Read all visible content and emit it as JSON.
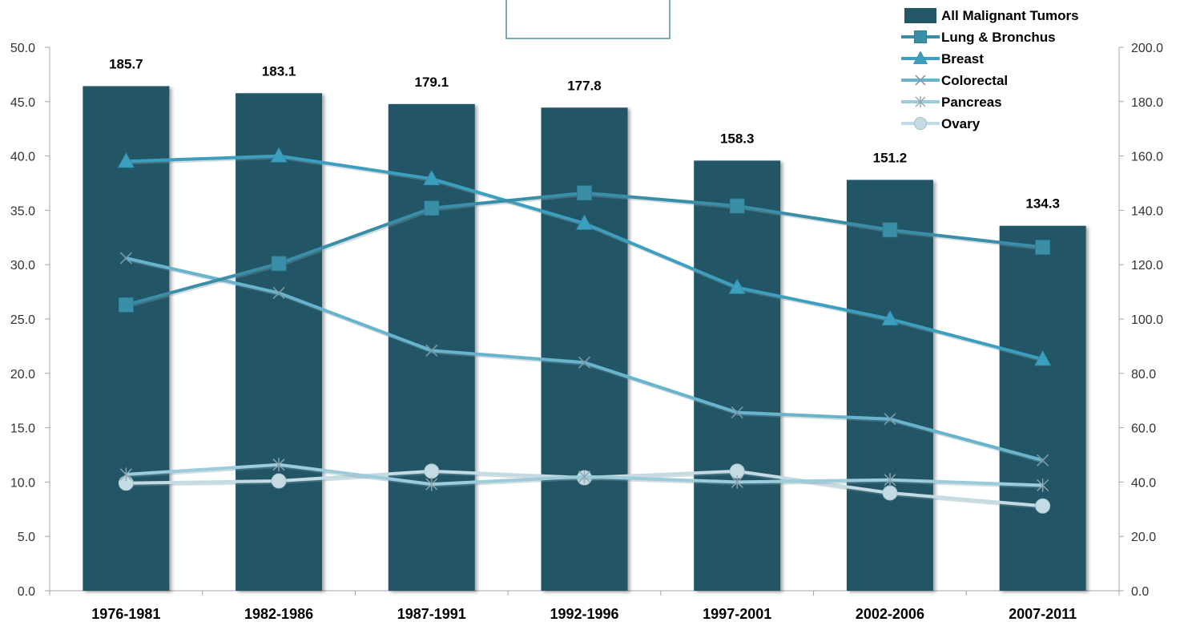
{
  "chart_data": {
    "type": "bar+line",
    "categories": [
      "1976-1981",
      "1982-1986",
      "1987-1991",
      "1992-1996",
      "1997-2001",
      "2002-2006",
      "2007-2011"
    ],
    "bar_series": {
      "name": "All Malignant Tumors",
      "axis": "right",
      "values": [
        185.7,
        183.1,
        179.1,
        177.8,
        158.3,
        151.2,
        134.3
      ],
      "labels": [
        "185.7",
        "183.1",
        "179.1",
        "177.8",
        "158.3",
        "151.2",
        "134.3"
      ],
      "color": "#235766"
    },
    "line_series": [
      {
        "name": "Lung & Bronchus",
        "axis": "left",
        "marker": "square",
        "color": "#3a8ea8",
        "values": [
          26.3,
          30.1,
          35.2,
          36.6,
          35.4,
          33.2,
          31.6
        ]
      },
      {
        "name": "Breast",
        "axis": "left",
        "marker": "triangle",
        "color": "#3d9fbf",
        "values": [
          39.5,
          40.0,
          37.9,
          33.8,
          27.9,
          25.0,
          21.3
        ]
      },
      {
        "name": "Colorectal",
        "axis": "left",
        "marker": "x",
        "color": "#68b4cc",
        "values": [
          30.6,
          27.4,
          22.1,
          21.0,
          16.4,
          15.8,
          12.0
        ]
      },
      {
        "name": "Pancreas",
        "axis": "left",
        "marker": "star",
        "color": "#9ccbdb",
        "values": [
          10.7,
          11.6,
          9.8,
          10.5,
          10.0,
          10.2,
          9.7
        ]
      },
      {
        "name": "Ovary",
        "axis": "left",
        "marker": "circle",
        "color": "#c4dbe4",
        "values": [
          9.9,
          10.1,
          11.0,
          10.4,
          11.0,
          9.0,
          7.8
        ]
      }
    ],
    "left_axis": {
      "min": 0,
      "max": 50,
      "step": 5,
      "tick_labels": [
        "0.0",
        "5.0",
        "10.0",
        "15.0",
        "20.0",
        "25.0",
        "30.0",
        "35.0",
        "40.0",
        "45.0",
        "50.0"
      ]
    },
    "right_axis": {
      "min": 0,
      "max": 200,
      "step": 20,
      "tick_labels": [
        "0.0",
        "20.0",
        "40.0",
        "60.0",
        "80.0",
        "100.0",
        "120.0",
        "140.0",
        "160.0",
        "180.0",
        "200.0"
      ]
    },
    "legend_position": "top-right",
    "grid": false,
    "title": ""
  }
}
